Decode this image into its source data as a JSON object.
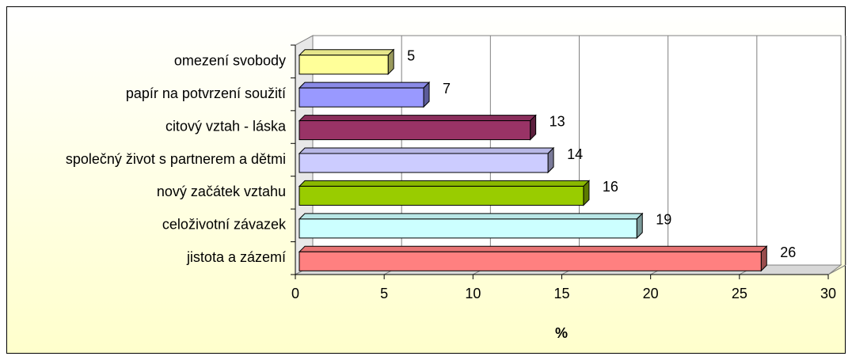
{
  "chart_data": {
    "type": "bar",
    "orientation": "horizontal",
    "three_d": true,
    "categories": [
      "omezení svobody",
      "papír na potvrzení soužití",
      "citový vztah - láska",
      "společný život s partnerem a dětmi",
      "nový začátek vztahu",
      "celoživotní závazek",
      "jistota a zázemí"
    ],
    "values": [
      5,
      7,
      13,
      14,
      16,
      19,
      26
    ],
    "colors": [
      "#ffff99",
      "#9999ff",
      "#993366",
      "#ccccff",
      "#99cc00",
      "#ccffff",
      "#ff8080"
    ],
    "xlabel": "%",
    "xlim": [
      0,
      30
    ],
    "xticks": [
      0,
      5,
      10,
      15,
      20,
      25,
      30
    ],
    "grid": true
  }
}
